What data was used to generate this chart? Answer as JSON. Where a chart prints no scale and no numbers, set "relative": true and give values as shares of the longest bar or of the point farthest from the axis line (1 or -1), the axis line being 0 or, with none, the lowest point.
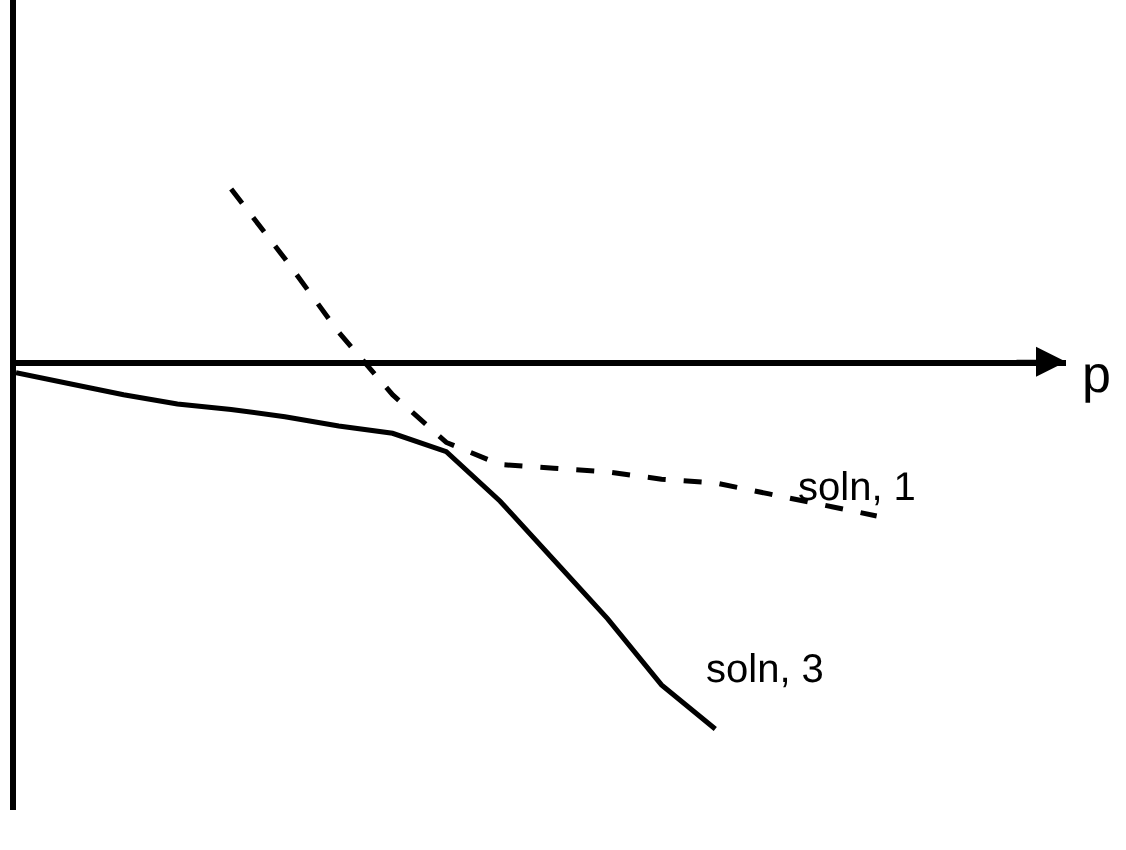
{
  "chart_data": {
    "type": "line",
    "relative": true,
    "xlabel": "p",
    "legend": false,
    "marker": "none",
    "categories": [
      null,
      null,
      null,
      null,
      null,
      null,
      null,
      null,
      null,
      null,
      null,
      null,
      null,
      null,
      null,
      null,
      null
    ],
    "series": [
      {
        "name": "soln, 1",
        "color": "#000000",
        "line_style": "dashed",
        "values": [
          null,
          null,
          null,
          null,
          0.47,
          0.28,
          0.08,
          -0.09,
          -0.22,
          -0.28,
          -0.29,
          -0.3,
          -0.32,
          -0.33,
          -0.36,
          -0.39,
          -0.42
        ]
      },
      {
        "name": "soln, 3",
        "color": "#000000",
        "line_style": "solid",
        "values": [
          -0.03,
          -0.06,
          -0.09,
          -0.115,
          -0.13,
          -0.15,
          -0.175,
          -0.195,
          -0.245,
          -0.38,
          -0.54,
          -0.7,
          -0.88,
          -1,
          null,
          null,
          null
        ]
      }
    ]
  }
}
